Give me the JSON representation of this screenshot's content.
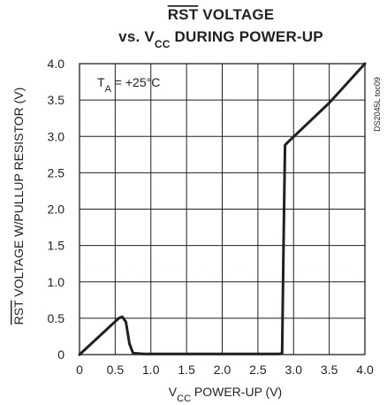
{
  "chart_data": {
    "type": "line",
    "title_parts": {
      "overline_text": "RST",
      "line1_rest": " VOLTAGE",
      "line2_pre": "vs. V",
      "line2_sub": "CC",
      "line2_post": " DURING POWER-UP"
    },
    "xlabel_parts": {
      "main": "V",
      "sub": "CC",
      "rest": " POWER-UP (V)"
    },
    "ylabel_parts": {
      "overline_text": "RST",
      "rest": " VOLTAGE W/PULLUP RESISTOR (V)"
    },
    "annotation_parts": {
      "main": "T",
      "sub": "A",
      "rest": " = +25°C"
    },
    "side_id": "DS2045L toc09",
    "xlim": [
      0,
      4.0
    ],
    "ylim": [
      0,
      4.0
    ],
    "xticks": [
      "0",
      "0.5",
      "1.0",
      "1.5",
      "2.0",
      "2.5",
      "3.0",
      "3.5",
      "4.0"
    ],
    "yticks": [
      "0",
      "0.5",
      "1.0",
      "1.5",
      "2.0",
      "2.5",
      "3.0",
      "3.5",
      "4.0"
    ],
    "grid": true,
    "series": [
      {
        "x": [
          0,
          0.55,
          0.6,
          0.65,
          0.7,
          0.75,
          0.9,
          1.5,
          2.0,
          2.5,
          2.8,
          2.84,
          2.86,
          2.88,
          2.92,
          3.5,
          4.0
        ],
        "y": [
          0,
          0.5,
          0.52,
          0.45,
          0.15,
          0.02,
          0.01,
          0.01,
          0.01,
          0.01,
          0.01,
          0.02,
          1.5,
          2.88,
          2.92,
          3.46,
          4.0
        ]
      }
    ]
  }
}
